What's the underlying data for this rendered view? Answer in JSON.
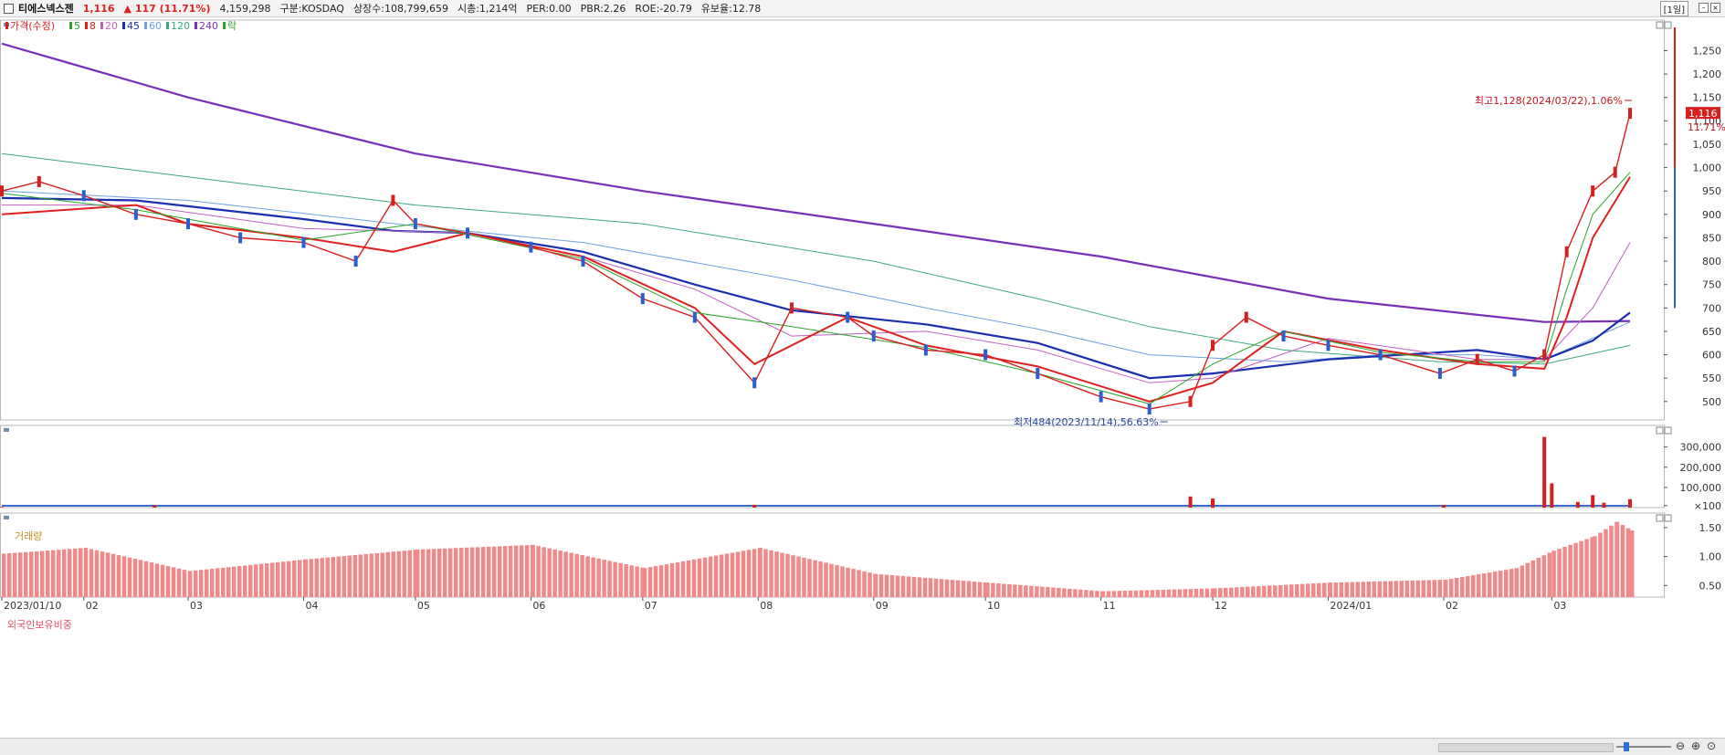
{
  "header": {
    "stock_name": "티에스넥스젠",
    "price": "1,116",
    "change": "▲ 117 (11.71%)",
    "volume": "4,159,298",
    "market": "구분:KOSDAQ",
    "shares": "상장수:108,799,659",
    "market_cap": "시총:1,214억",
    "per": "PER:0.00",
    "pbr": "PBR:2.26",
    "roe": "ROE:-20.79",
    "float_ratio": "유보율:12.78",
    "period": "[1일]"
  },
  "legend": [
    {
      "label": "가격(수정)",
      "color": "#d81f1f"
    },
    {
      "label": "5",
      "color": "#2aa52a"
    },
    {
      "label": "8",
      "color": "#e0201f"
    },
    {
      "label": "20",
      "color": "#c060c0"
    },
    {
      "label": "45",
      "color": "#1a2fb0"
    },
    {
      "label": "60",
      "color": "#6fa0e0"
    },
    {
      "label": "120",
      "color": "#3aaa7a"
    },
    {
      "label": "240",
      "color": "#7a2fb8"
    },
    {
      "label": "락",
      "color": "#2aa52a"
    }
  ],
  "panel_titles": {
    "volume": "거래량",
    "foreign": "외국인보유비중"
  },
  "annotations": {
    "high": "최고1,128(2024/03/22),1.06%",
    "low": "최저484(2023/11/14),56.63%",
    "current_price_tag": "1,116",
    "current_change_tag": "11.71%"
  },
  "chart_data": [
    {
      "type": "line",
      "title": "가격(수정)",
      "ylim": [
        470,
        1300
      ],
      "y_ticks": [
        "1,250",
        "1,200",
        "1,150",
        "1,100",
        "1,050",
        "1,000",
        "950",
        "900",
        "850",
        "800",
        "750",
        "700",
        "650",
        "600",
        "550",
        "500"
      ],
      "x_ticks": [
        "2023/01/10",
        "02",
        "03",
        "04",
        "05",
        "06",
        "07",
        "08",
        "09",
        "10",
        "11",
        "12",
        "2024/01",
        "02",
        "03"
      ],
      "x_dates": [
        "2023-01-10",
        "2023-02-01",
        "2023-03-01",
        "2023-04-01",
        "2023-05-01",
        "2023-06-01",
        "2023-07-01",
        "2023-08-01",
        "2023-09-01",
        "2023-10-01",
        "2023-11-01",
        "2023-12-01",
        "2024-01-01",
        "2024-02-01",
        "2024-03-01"
      ],
      "series": [
        {
          "name": "가격(수정)",
          "color": "#d81f1f",
          "x": [
            "2023-01-10",
            "2023-01-20",
            "2023-02-01",
            "2023-02-15",
            "2023-03-01",
            "2023-03-15",
            "2023-04-01",
            "2023-04-15",
            "2023-04-25",
            "2023-05-01",
            "2023-05-15",
            "2023-06-01",
            "2023-06-15",
            "2023-07-01",
            "2023-07-15",
            "2023-07-31",
            "2023-08-10",
            "2023-08-25",
            "2023-09-01",
            "2023-09-15",
            "2023-10-01",
            "2023-10-15",
            "2023-11-01",
            "2023-11-14",
            "2023-11-25",
            "2023-12-01",
            "2023-12-10",
            "2023-12-20",
            "2024-01-01",
            "2024-01-15",
            "2024-01-31",
            "2024-02-10",
            "2024-02-20",
            "2024-02-28",
            "2024-03-05",
            "2024-03-12",
            "2024-03-18",
            "2024-03-22"
          ],
          "y": [
            950,
            970,
            940,
            900,
            880,
            850,
            840,
            800,
            930,
            880,
            860,
            830,
            800,
            720,
            680,
            540,
            700,
            680,
            640,
            610,
            600,
            560,
            510,
            484,
            500,
            620,
            680,
            640,
            620,
            600,
            560,
            590,
            565,
            600,
            820,
            950,
            990,
            1116
          ]
        },
        {
          "name": "5",
          "color": "#2aa52a",
          "x": [
            "2023-01-10",
            "2023-02-15",
            "2023-04-01",
            "2023-05-01",
            "2023-06-15",
            "2023-07-15",
            "2023-08-10",
            "2023-09-15",
            "2023-10-15",
            "2023-11-14",
            "2023-12-01",
            "2023-12-20",
            "2024-01-15",
            "2024-02-10",
            "2024-02-28",
            "2024-03-05",
            "2024-03-12",
            "2024-03-22"
          ],
          "y": [
            945,
            910,
            845,
            880,
            805,
            690,
            660,
            615,
            560,
            495,
            580,
            650,
            605,
            585,
            585,
            740,
            900,
            990
          ]
        },
        {
          "name": "8",
          "color": "#e0201f",
          "x": [
            "2023-01-10",
            "2023-02-15",
            "2023-03-01",
            "2023-04-01",
            "2023-04-25",
            "2023-05-15",
            "2023-06-15",
            "2023-07-15",
            "2023-07-31",
            "2023-08-25",
            "2023-09-15",
            "2023-10-15",
            "2023-11-14",
            "2023-12-01",
            "2023-12-20",
            "2024-01-15",
            "2024-02-10",
            "2024-02-28",
            "2024-03-05",
            "2024-03-12",
            "2024-03-22"
          ],
          "y": [
            900,
            920,
            880,
            850,
            820,
            860,
            810,
            700,
            580,
            680,
            620,
            575,
            500,
            540,
            650,
            610,
            580,
            570,
            680,
            850,
            980
          ]
        },
        {
          "name": "20",
          "color": "#c060c0",
          "x": [
            "2023-01-10",
            "2023-02-15",
            "2023-04-01",
            "2023-05-15",
            "2023-06-15",
            "2023-07-15",
            "2023-08-10",
            "2023-09-15",
            "2023-10-15",
            "2023-11-14",
            "2023-12-01",
            "2024-01-01",
            "2024-02-10",
            "2024-02-28",
            "2024-03-12",
            "2024-03-22"
          ],
          "y": [
            920,
            920,
            870,
            860,
            810,
            740,
            640,
            650,
            610,
            540,
            550,
            635,
            590,
            590,
            700,
            840
          ]
        },
        {
          "name": "45",
          "color": "#1a2fb0",
          "x": [
            "2023-01-10",
            "2023-02-15",
            "2023-04-01",
            "2023-04-25",
            "2023-05-15",
            "2023-06-15",
            "2023-07-15",
            "2023-08-10",
            "2023-09-15",
            "2023-10-15",
            "2023-11-14",
            "2023-12-01",
            "2024-01-01",
            "2024-02-10",
            "2024-02-28",
            "2024-03-12",
            "2024-03-22"
          ],
          "y": [
            935,
            930,
            890,
            865,
            860,
            820,
            750,
            695,
            665,
            625,
            550,
            560,
            590,
            610,
            590,
            630,
            690
          ]
        },
        {
          "name": "60",
          "color": "#6fa0e0",
          "x": [
            "2023-01-10",
            "2023-03-01",
            "2023-05-01",
            "2023-06-15",
            "2023-08-10",
            "2023-09-15",
            "2023-10-15",
            "2023-11-14",
            "2023-12-20",
            "2024-01-15",
            "2024-02-10",
            "2024-02-28",
            "2024-03-22"
          ],
          "y": [
            950,
            930,
            875,
            840,
            760,
            700,
            655,
            600,
            585,
            600,
            600,
            590,
            670
          ]
        },
        {
          "name": "120",
          "color": "#3aaa7a",
          "x": [
            "2023-01-10",
            "2023-03-01",
            "2023-05-01",
            "2023-07-01",
            "2023-09-01",
            "2023-10-15",
            "2023-11-14",
            "2023-12-20",
            "2024-01-31",
            "2024-02-28",
            "2024-03-22"
          ],
          "y": [
            1030,
            980,
            920,
            880,
            800,
            720,
            660,
            610,
            585,
            580,
            620
          ]
        },
        {
          "name": "240",
          "color": "#7a2fb8",
          "x": [
            "2023-01-10",
            "2023-03-01",
            "2023-05-01",
            "2023-07-01",
            "2023-09-01",
            "2023-11-01",
            "2024-01-01",
            "2024-02-28",
            "2024-03-22"
          ],
          "y": [
            1265,
            1150,
            1030,
            950,
            880,
            810,
            720,
            670,
            672
          ]
        }
      ],
      "high": {
        "date": "2024-03-22",
        "value": 1128
      },
      "low": {
        "date": "2023-11-14",
        "value": 484
      },
      "current": 1116
    },
    {
      "type": "bar",
      "title": "거래량",
      "ylim": [
        0,
        380000
      ],
      "y_ticks": [
        "300,000",
        "200,000",
        "100,000",
        "×100"
      ],
      "x": [
        "2023-01-10",
        "2023-02-20",
        "2023-07-31",
        "2023-11-25",
        "2023-12-01",
        "2024-02-01",
        "2024-02-28",
        "2024-03-01",
        "2024-03-08",
        "2024-03-12",
        "2024-03-15",
        "2024-03-22"
      ],
      "values": [
        3000,
        12000,
        14000,
        55000,
        45000,
        14000,
        350000,
        120000,
        28000,
        62000,
        24000,
        41592
      ]
    },
    {
      "type": "bar",
      "title": "외국인보유비중",
      "ylim": [
        0.3,
        1.75
      ],
      "y_ticks": [
        "1.50",
        "1.00",
        "0.50"
      ],
      "x": [
        "2023-01-10",
        "2023-02-01",
        "2023-03-01",
        "2023-04-01",
        "2023-05-01",
        "2023-06-01",
        "2023-07-01",
        "2023-08-01",
        "2023-09-01",
        "2023-10-01",
        "2023-11-01",
        "2023-12-01",
        "2024-01-01",
        "2024-02-01",
        "2024-02-20",
        "2024-03-01",
        "2024-03-12",
        "2024-03-18",
        "2024-03-22"
      ],
      "values": [
        1.05,
        1.15,
        0.75,
        0.95,
        1.12,
        1.2,
        0.8,
        1.15,
        0.7,
        0.55,
        0.4,
        0.45,
        0.55,
        0.6,
        0.8,
        1.1,
        1.35,
        1.6,
        1.45
      ]
    }
  ]
}
